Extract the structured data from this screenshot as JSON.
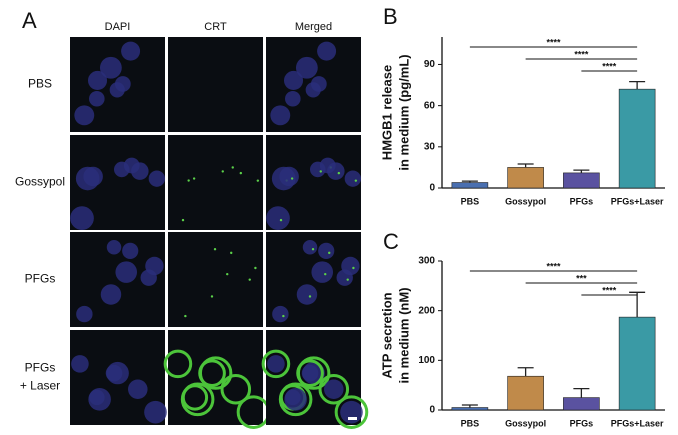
{
  "panel_a": {
    "label": "A",
    "columns": [
      "DAPI",
      "CRT",
      "Merged"
    ],
    "rows": [
      [
        "PBS"
      ],
      [
        "Gossypol"
      ],
      [
        "PFGs"
      ],
      [
        "PFGs",
        "+ Laser"
      ]
    ]
  },
  "chart_data": [
    {
      "type": "bar",
      "panel_label": "B",
      "ylabel": [
        "HMGB1 release",
        "in medium (pg/mL)"
      ],
      "categories": [
        "PBS",
        "Gossypol",
        "PFGs",
        "PFGs+Laser"
      ],
      "values": [
        4,
        15,
        11,
        72
      ],
      "errors": [
        1,
        2.5,
        2,
        5.5
      ],
      "colors": [
        "#4a6fb0",
        "#c08a4a",
        "#5a52a0",
        "#3a9aa5"
      ],
      "ylim": [
        0,
        110
      ],
      "yticks": [
        0,
        30,
        60,
        90
      ],
      "comparisons": [
        {
          "label": "****",
          "categories": [
            "PBS",
            "PFGs+Laser"
          ]
        },
        {
          "label": "****",
          "categories": [
            "Gossypol",
            "PFGs+Laser"
          ]
        },
        {
          "label": "****",
          "categories": [
            "PFGs",
            "PFGs+Laser"
          ]
        }
      ]
    },
    {
      "type": "bar",
      "panel_label": "C",
      "ylabel": [
        "ATP secretion",
        "in medium (nM)"
      ],
      "categories": [
        "PBS",
        "Gossypol",
        "PFGs",
        "PFGs+Laser"
      ],
      "values": [
        5,
        68,
        25,
        187
      ],
      "errors": [
        5,
        17,
        18,
        50
      ],
      "colors": [
        "#4a6fb0",
        "#c08a4a",
        "#5a52a0",
        "#3a9aa5"
      ],
      "ylim": [
        0,
        300
      ],
      "yticks": [
        0,
        100,
        200,
        300
      ],
      "comparisons": [
        {
          "label": "****",
          "categories": [
            "PBS",
            "PFGs+Laser"
          ]
        },
        {
          "label": "***",
          "categories": [
            "Gossypol",
            "PFGs+Laser"
          ]
        },
        {
          "label": "****",
          "categories": [
            "PFGs",
            "PFGs+Laser"
          ]
        }
      ]
    }
  ]
}
